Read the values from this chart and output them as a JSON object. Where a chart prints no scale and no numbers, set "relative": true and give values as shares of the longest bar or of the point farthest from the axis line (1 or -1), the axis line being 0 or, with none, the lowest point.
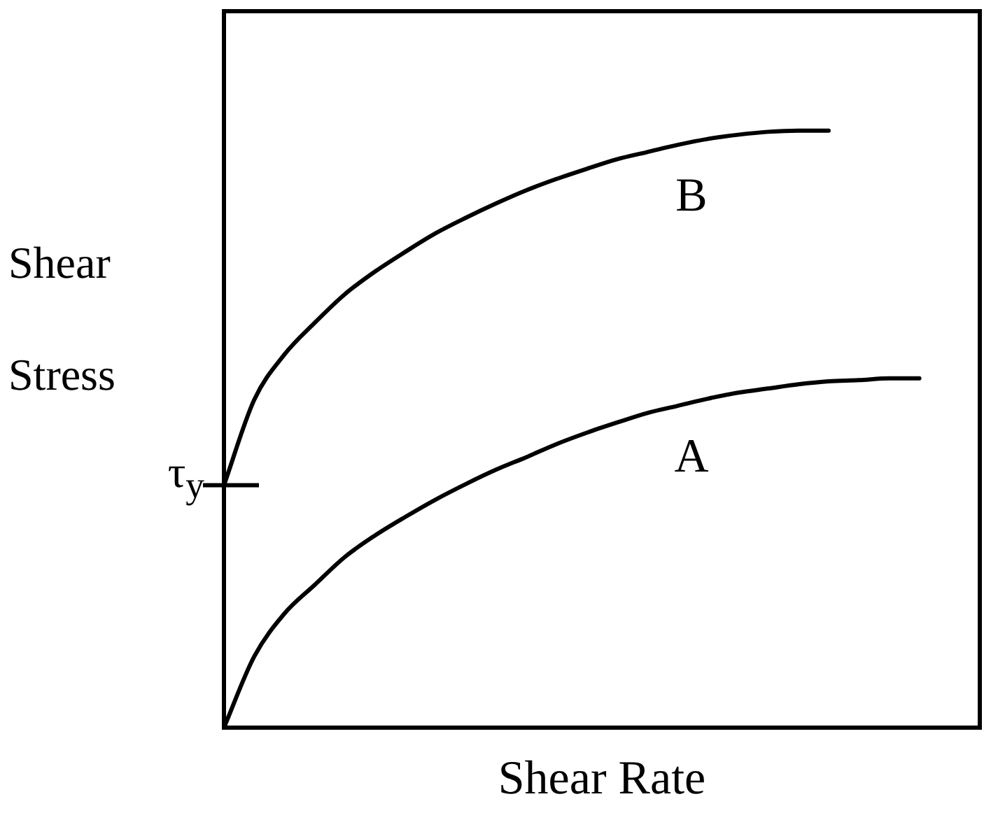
{
  "chart_data": {
    "type": "line",
    "relative": true,
    "xlabel": "Shear Rate",
    "ylabel": "Shear Stress",
    "legend": false,
    "marker": "none",
    "line_style": "solid",
    "categories": [
      null,
      null,
      null,
      null,
      null,
      null,
      null,
      null,
      null,
      null,
      null,
      null,
      null,
      null,
      null,
      null,
      null,
      null,
      null,
      null,
      null,
      null,
      null,
      null,
      null,
      null
    ],
    "series": [
      {
        "name": "A",
        "color": "#000000",
        "values": [
          0,
          0.119,
          0.191,
          0.239,
          0.286,
          0.322,
          0.353,
          0.382,
          0.408,
          0.432,
          0.453,
          0.475,
          0.494,
          0.511,
          0.527,
          0.539,
          0.551,
          0.561,
          0.568,
          0.575,
          0.58,
          0.582,
          0.585,
          0.585,
          null,
          null
        ]
      },
      {
        "name": "B",
        "color": "#000000",
        "values": [
          0.406,
          0.549,
          0.625,
          0.678,
          0.726,
          0.764,
          0.797,
          0.828,
          0.854,
          0.878,
          0.9,
          0.919,
          0.936,
          0.952,
          0.964,
          0.976,
          0.986,
          0.993,
          0.998,
          1,
          1,
          null,
          null,
          null,
          null,
          null
        ]
      }
    ],
    "annotations": [
      "τ$_{y}$"
    ]
  }
}
